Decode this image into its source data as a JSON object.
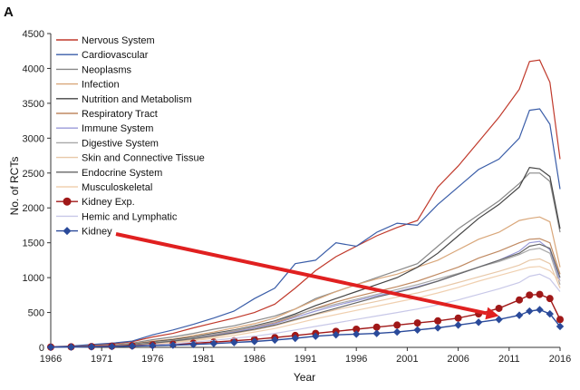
{
  "chart_data": {
    "type": "line",
    "panel_label": "A",
    "xlabel": "Year",
    "ylabel": "No. of RCTs",
    "xlim": [
      1966,
      2016
    ],
    "ylim": [
      0,
      4500
    ],
    "xticks": [
      1966,
      1971,
      1976,
      1981,
      1986,
      1991,
      1996,
      2001,
      2006,
      2011,
      2016
    ],
    "yticks": [
      0,
      500,
      1000,
      1500,
      2000,
      2500,
      3000,
      3500,
      4000,
      4500
    ],
    "years": [
      1966,
      1968,
      1970,
      1972,
      1974,
      1976,
      1978,
      1980,
      1982,
      1984,
      1986,
      1988,
      1990,
      1992,
      1994,
      1996,
      1998,
      2000,
      2002,
      2004,
      2006,
      2008,
      2010,
      2012,
      2013,
      2014,
      2015,
      2016
    ],
    "series": [
      {
        "name": "Nervous System",
        "color": "#c0392b",
        "marker": "none",
        "values": [
          5,
          15,
          30,
          50,
          80,
          150,
          200,
          280,
          350,
          420,
          500,
          620,
          850,
          1100,
          1300,
          1450,
          1600,
          1720,
          1820,
          2300,
          2600,
          2950,
          3300,
          3700,
          4100,
          4120,
          3800,
          2700
        ]
      },
      {
        "name": "Cardiovascular",
        "color": "#3a5da8",
        "marker": "none",
        "values": [
          8,
          20,
          40,
          60,
          90,
          180,
          250,
          330,
          420,
          520,
          700,
          850,
          1200,
          1250,
          1500,
          1450,
          1650,
          1780,
          1750,
          2050,
          2300,
          2550,
          2700,
          3000,
          3400,
          3420,
          3200,
          2270
        ]
      },
      {
        "name": "Neoplasms",
        "color": "#888888",
        "marker": "none",
        "values": [
          3,
          10,
          20,
          35,
          60,
          110,
          150,
          200,
          260,
          310,
          380,
          450,
          550,
          700,
          800,
          900,
          1000,
          1100,
          1200,
          1450,
          1700,
          1900,
          2100,
          2350,
          2500,
          2500,
          2380,
          1650
        ]
      },
      {
        "name": "Infection",
        "color": "#d9a77a",
        "marker": "none",
        "values": [
          3,
          8,
          18,
          30,
          50,
          90,
          120,
          170,
          220,
          280,
          340,
          420,
          550,
          680,
          800,
          900,
          980,
          1050,
          1150,
          1250,
          1400,
          1550,
          1650,
          1820,
          1850,
          1870,
          1800,
          1150
        ]
      },
      {
        "name": "Nutrition and Metabolism",
        "color": "#444444",
        "marker": "none",
        "values": [
          2,
          8,
          15,
          25,
          45,
          80,
          110,
          150,
          200,
          250,
          310,
          380,
          480,
          600,
          700,
          800,
          900,
          1000,
          1150,
          1350,
          1600,
          1850,
          2050,
          2300,
          2580,
          2560,
          2450,
          1700
        ]
      },
      {
        "name": "Respiratory Tract",
        "color": "#c08a62",
        "marker": "none",
        "values": [
          2,
          6,
          12,
          22,
          40,
          70,
          100,
          140,
          180,
          230,
          290,
          350,
          450,
          560,
          650,
          730,
          800,
          870,
          950,
          1050,
          1150,
          1280,
          1380,
          1500,
          1550,
          1560,
          1500,
          1050
        ]
      },
      {
        "name": "Immune System",
        "color": "#9a9ad8",
        "marker": "none",
        "values": [
          2,
          6,
          12,
          20,
          35,
          60,
          90,
          130,
          170,
          220,
          280,
          340,
          430,
          520,
          600,
          670,
          740,
          800,
          870,
          950,
          1050,
          1150,
          1250,
          1380,
          1500,
          1520,
          1400,
          950
        ]
      },
      {
        "name": "Digestive System",
        "color": "#a8a8a8",
        "marker": "none",
        "values": [
          3,
          8,
          15,
          25,
          40,
          70,
          100,
          140,
          190,
          240,
          300,
          370,
          460,
          550,
          620,
          690,
          760,
          830,
          900,
          980,
          1060,
          1150,
          1230,
          1330,
          1400,
          1420,
          1350,
          900
        ]
      },
      {
        "name": "Skin and Connective Tissue",
        "color": "#e8c8a8",
        "marker": "none",
        "values": [
          2,
          5,
          10,
          18,
          30,
          50,
          75,
          110,
          150,
          200,
          250,
          310,
          390,
          470,
          540,
          600,
          660,
          720,
          780,
          850,
          930,
          1010,
          1090,
          1180,
          1250,
          1270,
          1200,
          850
        ]
      },
      {
        "name": "Endocrine System",
        "color": "#666666",
        "marker": "none",
        "values": [
          2,
          6,
          12,
          20,
          35,
          60,
          90,
          125,
          165,
          210,
          260,
          320,
          400,
          480,
          560,
          640,
          720,
          790,
          860,
          950,
          1050,
          1150,
          1250,
          1350,
          1450,
          1480,
          1420,
          1000
        ]
      },
      {
        "name": "Musculoskeletal",
        "color": "#f0d0b0",
        "marker": "none",
        "values": [
          1,
          4,
          8,
          14,
          25,
          45,
          65,
          95,
          130,
          170,
          220,
          270,
          340,
          410,
          470,
          530,
          590,
          650,
          710,
          780,
          860,
          950,
          1030,
          1110,
          1150,
          1160,
          1100,
          950
        ]
      },
      {
        "name": "Kidney Exp.",
        "color": "#a01818",
        "marker": "circle",
        "values": [
          5,
          8,
          12,
          18,
          25,
          35,
          45,
          60,
          75,
          95,
          115,
          140,
          170,
          200,
          230,
          260,
          290,
          320,
          350,
          380,
          420,
          480,
          560,
          680,
          750,
          760,
          700,
          400
        ]
      },
      {
        "name": "Hemic and Lymphatic",
        "color": "#c8c8e8",
        "marker": "none",
        "values": [
          1,
          3,
          6,
          12,
          20,
          35,
          50,
          75,
          100,
          130,
          160,
          200,
          250,
          300,
          350,
          400,
          450,
          500,
          550,
          610,
          680,
          760,
          840,
          930,
          1020,
          1050,
          980,
          800
        ]
      },
      {
        "name": "Kidney",
        "color": "#2a4a9a",
        "marker": "diamond",
        "values": [
          3,
          5,
          8,
          12,
          18,
          25,
          32,
          42,
          55,
          70,
          85,
          105,
          130,
          160,
          180,
          190,
          200,
          220,
          250,
          280,
          320,
          360,
          400,
          460,
          520,
          540,
          480,
          300
        ]
      }
    ],
    "legend_position": "top-left",
    "annotation": {
      "type": "arrow",
      "color": "#e02020",
      "from_series": "Kidney",
      "to_x": 2010,
      "to_y": 450
    }
  }
}
